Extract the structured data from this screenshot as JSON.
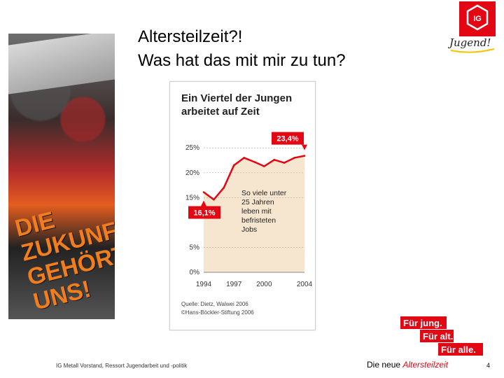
{
  "slide": {
    "title_lines": [
      "Altersteilzeit?!",
      "Was hat das mit mir zu tun?"
    ],
    "footer_left": "IG Metall Vorstand, Ressort Jugendarbeit und -politik",
    "footer_right_prefix": "Die neue ",
    "footer_right_accent": "Altersteilzeit",
    "page_number": "4"
  },
  "logo": {
    "mark_text": "IG",
    "script_text": "Jugend!"
  },
  "photo": {
    "slogan_lines": [
      "DIE",
      "ZUKUNFT",
      "GEHÖRT",
      "UNS!"
    ]
  },
  "stamp": {
    "lines": [
      "Für jung.",
      "Für alt.",
      "Für alle."
    ]
  },
  "colors": {
    "accent_red": "#e30613",
    "chart_area": "#f6e6cf",
    "chart_line": "#e30613",
    "callout": "#e30613"
  },
  "chart_data": {
    "type": "line",
    "title_lines": [
      "Ein Viertel der Jungen",
      "arbeitet auf Zeit"
    ],
    "x_ticks": [
      1994,
      1997,
      2000,
      2004
    ],
    "x_range": [
      1994,
      2004
    ],
    "y_ticks": [
      "0%",
      "5%",
      "15%",
      "20%",
      "25%"
    ],
    "y_tick_values": [
      0,
      5,
      15,
      20,
      25
    ],
    "y_range": [
      0,
      27
    ],
    "series": [
      {
        "x": [
          1994,
          1995,
          1996,
          1997,
          1998,
          1999,
          2000,
          2001,
          2002,
          2003,
          2004
        ],
        "values": [
          16.1,
          14.6,
          17.0,
          21.5,
          23.0,
          22.2,
          21.3,
          22.6,
          22.0,
          23.0,
          23.4
        ]
      }
    ],
    "callouts": [
      {
        "text": "16,1%",
        "x": 1994,
        "y": 16.1
      },
      {
        "text": "23,4%",
        "x": 2004,
        "y": 23.4
      }
    ],
    "annotation_lines": [
      "So viele unter",
      "25 Jahren",
      "leben mit",
      "befristeten",
      "Jobs"
    ],
    "source_lines": [
      "Quelle: Dietz, Walwei 2006",
      "©Hans-Böckler-Stiftung 2006"
    ]
  }
}
